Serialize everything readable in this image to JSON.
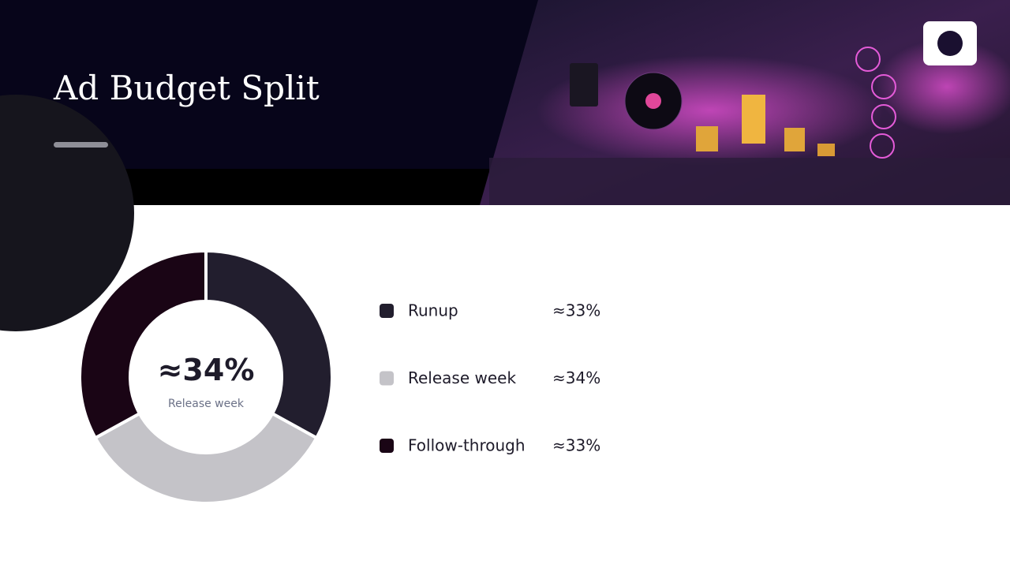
{
  "chart_data": {
    "type": "pie",
    "title": "Ad Budget Split",
    "categories": [
      "Runup",
      "Release week",
      "Follow-through"
    ],
    "values": [
      33,
      34,
      33
    ],
    "value_labels": [
      "≈33%",
      "≈34%",
      "≈33%"
    ],
    "colors": [
      "#221e2e",
      "#c4c3c8",
      "#1a0515"
    ],
    "highlight": 1
  }
}
